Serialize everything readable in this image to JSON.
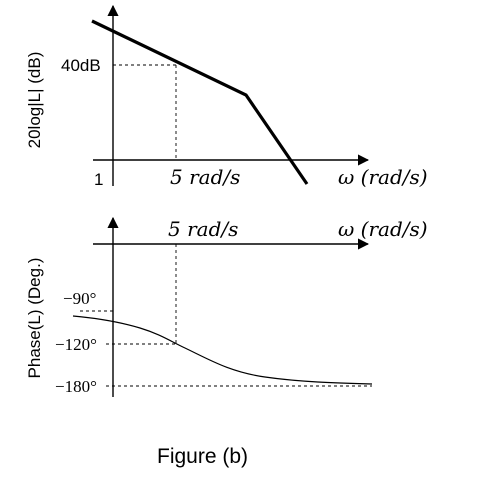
{
  "magnitude_plot": {
    "ylabel": "20log|L| (dB)",
    "y_tick_40": "40dB",
    "x_tick_1": "1",
    "x_tick_5": "5 rad/s",
    "xlabel": "ω (rad/s)"
  },
  "phase_plot": {
    "ylabel": "Phase(L) (Deg.)",
    "x_tick_5": "5 rad/s",
    "xlabel": "ω (rad/s)",
    "y_tick_90": "−90°",
    "y_tick_120": "−120°",
    "y_tick_180": "−180°"
  },
  "caption": "Figure (b)",
  "colors": {
    "stroke": "#000000",
    "background": "#ffffff"
  }
}
